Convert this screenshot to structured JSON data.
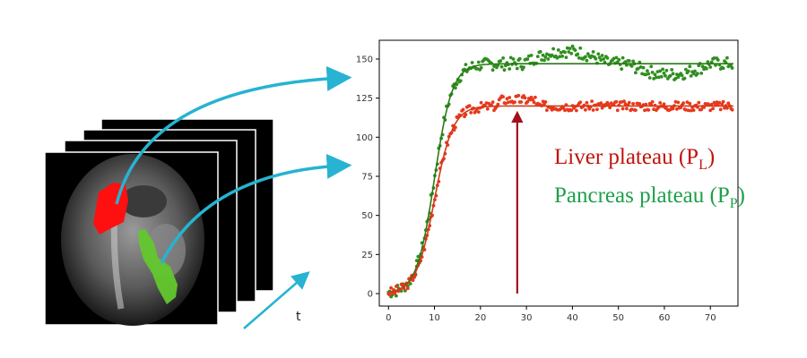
{
  "colors": {
    "liver": "#e8381c",
    "liver_text": "#c0140c",
    "pancreas": "#2f8f1f",
    "pancreas_text": "#1ea04a",
    "arrow": "#27b3d1",
    "plateau_marker": "#a3101a"
  },
  "stack": {
    "time_label": "t"
  },
  "legend": {
    "liver": {
      "main": "Liver plateau (P",
      "sub": "L",
      "close": ")"
    },
    "pancreas": {
      "main": "Pancreas plateau (P",
      "sub": "P",
      "close": ")"
    }
  },
  "chart_data": {
    "type": "scatter",
    "xlim": [
      -2,
      76
    ],
    "ylim": [
      -8,
      162
    ],
    "xticks": [
      0,
      10,
      20,
      30,
      40,
      50,
      60,
      70
    ],
    "yticks": [
      0,
      25,
      50,
      75,
      100,
      125,
      150
    ],
    "grid": false,
    "plateau_marker_x": 28,
    "series": [
      {
        "key": "pancreas",
        "plateau": 147,
        "t0": 10,
        "k": 0.52,
        "seed": 7,
        "noise": 4
      },
      {
        "key": "liver",
        "plateau": 120,
        "t0": 10,
        "k": 0.5,
        "seed": 3,
        "noise": 3
      }
    ]
  }
}
